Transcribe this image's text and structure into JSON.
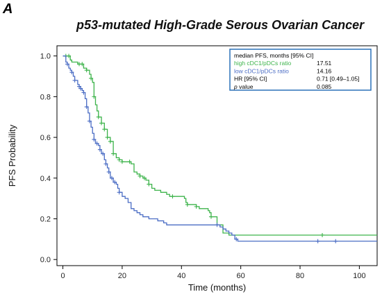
{
  "panel_letter": "A",
  "chart_data": {
    "type": "line",
    "title": "p53-mutated High-Grade Serous Ovarian Cancer",
    "xlabel": "Time (months)",
    "ylabel": "PFS Probability",
    "xlim": [
      -2,
      106
    ],
    "ylim": [
      -0.03,
      1.05
    ],
    "xticks": [
      0,
      20,
      40,
      60,
      80,
      100
    ],
    "yticks": [
      0.0,
      0.2,
      0.4,
      0.6,
      0.8,
      1.0
    ],
    "xtick_labels": [
      "0",
      "20",
      "40",
      "60",
      "80",
      "100"
    ],
    "ytick_labels": [
      "0.0",
      "0.2",
      "0.4",
      "0.6",
      "0.8",
      "1.0"
    ],
    "grid": false,
    "series": [
      {
        "name": "high cDC1/pDCs ratio",
        "color": "#3cb34a",
        "points": [
          [
            0,
            1.0
          ],
          [
            2,
            1.0
          ],
          [
            2.5,
            0.98
          ],
          [
            3,
            0.97
          ],
          [
            5,
            0.96
          ],
          [
            7,
            0.94
          ],
          [
            8,
            0.93
          ],
          [
            9,
            0.91
          ],
          [
            9.5,
            0.89
          ],
          [
            10,
            0.87
          ],
          [
            10.5,
            0.8
          ],
          [
            11,
            0.76
          ],
          [
            11.5,
            0.73
          ],
          [
            12,
            0.7
          ],
          [
            13,
            0.67
          ],
          [
            14,
            0.64
          ],
          [
            15,
            0.6
          ],
          [
            16,
            0.58
          ],
          [
            17,
            0.52
          ],
          [
            18,
            0.5
          ],
          [
            19,
            0.49
          ],
          [
            20,
            0.48
          ],
          [
            23,
            0.47
          ],
          [
            24,
            0.43
          ],
          [
            25,
            0.42
          ],
          [
            26,
            0.41
          ],
          [
            27,
            0.4
          ],
          [
            28,
            0.39
          ],
          [
            29,
            0.37
          ],
          [
            30,
            0.35
          ],
          [
            31,
            0.34
          ],
          [
            33,
            0.33
          ],
          [
            35,
            0.32
          ],
          [
            36,
            0.31
          ],
          [
            41,
            0.3
          ],
          [
            41.5,
            0.28
          ],
          [
            42,
            0.27
          ],
          [
            45,
            0.26
          ],
          [
            46,
            0.25
          ],
          [
            49,
            0.24
          ],
          [
            49.5,
            0.23
          ],
          [
            50,
            0.21
          ],
          [
            52,
            0.17
          ],
          [
            54,
            0.13
          ],
          [
            56,
            0.12
          ],
          [
            106,
            0.12
          ]
        ],
        "censor_x": [
          1.0,
          2.0,
          5.5,
          6.5,
          8.0,
          9.5,
          10.5,
          12.0,
          13.0,
          14.0,
          15.0,
          16.0,
          17.0,
          19.0,
          20.0,
          22.5,
          26.0,
          27.5,
          29.0,
          37.0,
          42.0,
          45.0,
          50.0,
          87.5
        ]
      },
      {
        "name": "low cDC1/pDCs ratio",
        "color": "#4a6cc4",
        "points": [
          [
            0,
            1.0
          ],
          [
            1,
            0.97
          ],
          [
            1.5,
            0.96
          ],
          [
            2,
            0.94
          ],
          [
            2.5,
            0.93
          ],
          [
            3,
            0.92
          ],
          [
            3.5,
            0.9
          ],
          [
            4,
            0.88
          ],
          [
            5,
            0.86
          ],
          [
            5.5,
            0.85
          ],
          [
            6,
            0.84
          ],
          [
            6.5,
            0.83
          ],
          [
            7,
            0.82
          ],
          [
            7.5,
            0.79
          ],
          [
            8,
            0.75
          ],
          [
            8.5,
            0.72
          ],
          [
            9,
            0.68
          ],
          [
            9.5,
            0.65
          ],
          [
            10,
            0.62
          ],
          [
            10.5,
            0.59
          ],
          [
            11,
            0.57
          ],
          [
            12,
            0.56
          ],
          [
            12.5,
            0.54
          ],
          [
            13,
            0.52
          ],
          [
            14,
            0.49
          ],
          [
            14.5,
            0.47
          ],
          [
            15,
            0.45
          ],
          [
            15.5,
            0.43
          ],
          [
            16,
            0.4
          ],
          [
            17,
            0.38
          ],
          [
            18,
            0.37
          ],
          [
            18.5,
            0.35
          ],
          [
            19,
            0.33
          ],
          [
            20,
            0.31
          ],
          [
            21,
            0.3
          ],
          [
            22,
            0.28
          ],
          [
            23,
            0.25
          ],
          [
            24,
            0.24
          ],
          [
            25,
            0.23
          ],
          [
            26,
            0.22
          ],
          [
            27,
            0.21
          ],
          [
            29,
            0.2
          ],
          [
            32,
            0.19
          ],
          [
            34,
            0.18
          ],
          [
            35,
            0.17
          ],
          [
            53,
            0.16
          ],
          [
            54,
            0.15
          ],
          [
            55,
            0.14
          ],
          [
            56,
            0.13
          ],
          [
            57,
            0.12
          ],
          [
            58,
            0.1
          ],
          [
            59,
            0.09
          ],
          [
            106,
            0.09
          ]
        ],
        "censor_x": [
          1.5,
          3.0,
          4.0,
          5.5,
          6.0,
          7.0,
          8.0,
          9.0,
          10.5,
          11.5,
          12.5,
          13.5,
          14.5,
          15.5,
          16.5,
          17.5,
          19.0,
          52.0,
          58.5,
          86.0,
          92.0
        ]
      }
    ],
    "legend": {
      "position": "top-right",
      "header": [
        "median PFS, months [95% CI]",
        ""
      ],
      "rows": [
        {
          "label": "high cDC1/pDCs ratio",
          "value": "17.51",
          "color": "#3cb34a"
        },
        {
          "label": "low cDC1/pDCs ratio",
          "value": "14.16",
          "color": "#4a6cc4"
        },
        {
          "label": "HR [95% CI]",
          "value": "0.71 [0.49–1.05]",
          "color": "#000000"
        },
        {
          "label_italic": "p",
          "label": " value",
          "value": "0.085",
          "color": "#000000"
        }
      ]
    }
  },
  "colors": {
    "legend_border": "#2a70b8",
    "axis": "#000000"
  }
}
